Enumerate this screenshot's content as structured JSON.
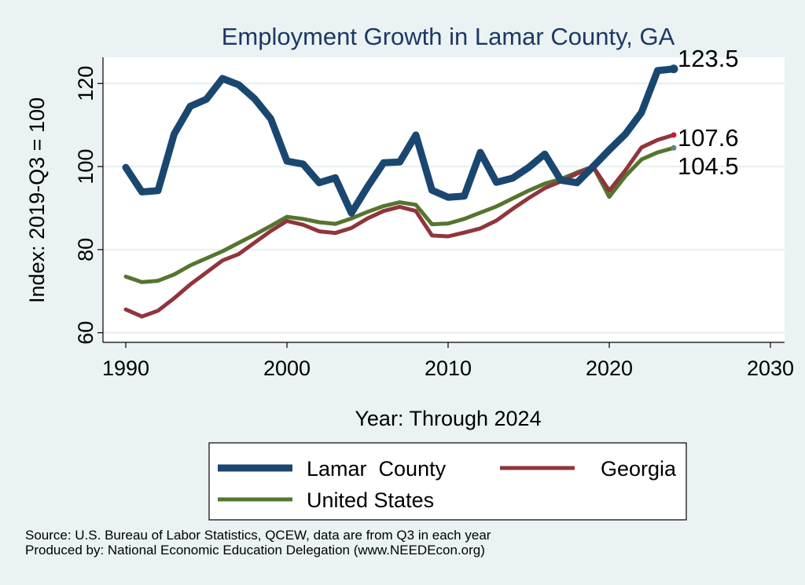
{
  "chart_data": {
    "type": "line",
    "title": "Employment Growth in Lamar County, GA",
    "xlabel": "Year: Through 2024",
    "ylabel": "Index: 2019-Q3 = 100",
    "xlim": [
      1990,
      2030
    ],
    "ylim": [
      60,
      125
    ],
    "x_ticks": [
      1990,
      2000,
      2010,
      2020,
      2030
    ],
    "y_ticks": [
      60,
      80,
      100,
      120
    ],
    "grid": true,
    "legend_position": "bottom",
    "x": [
      1990,
      1991,
      1992,
      1993,
      1994,
      1995,
      1996,
      1997,
      1998,
      1999,
      2000,
      2001,
      2002,
      2003,
      2004,
      2005,
      2006,
      2007,
      2008,
      2009,
      2010,
      2011,
      2012,
      2013,
      2014,
      2015,
      2016,
      2017,
      2018,
      2019,
      2020,
      2021,
      2022,
      2023,
      2024
    ],
    "series": [
      {
        "name": "Lamar  County",
        "color": "#1a476f",
        "end_label": "123.5",
        "values": [
          99.8,
          93.9,
          94.2,
          107.8,
          114.5,
          116.2,
          121.2,
          119.7,
          116.3,
          111.5,
          101.3,
          100.6,
          96.1,
          97.3,
          88.8,
          95.1,
          100.9,
          101.1,
          107.6,
          94.3,
          92.6,
          92.9,
          103.4,
          96.2,
          97.2,
          99.8,
          103.0,
          96.7,
          96.1,
          100.0,
          104.0,
          107.8,
          113.0,
          123.1,
          123.5
        ]
      },
      {
        "name": "Georgia",
        "color": "#90353b",
        "end_label": "107.6",
        "values": [
          65.6,
          63.9,
          65.3,
          68.3,
          71.6,
          74.5,
          77.4,
          78.9,
          81.7,
          84.5,
          86.9,
          86.0,
          84.4,
          84.0,
          85.2,
          87.5,
          89.3,
          90.3,
          89.3,
          83.4,
          83.2,
          84.1,
          85.1,
          87.0,
          89.8,
          92.4,
          94.8,
          96.4,
          98.3,
          100.0,
          94.2,
          99.1,
          104.6,
          106.4,
          107.6
        ]
      },
      {
        "name": "United States",
        "color": "#55752f",
        "end_label": "104.5",
        "values": [
          73.5,
          72.2,
          72.5,
          74.0,
          76.2,
          77.9,
          79.6,
          81.6,
          83.6,
          85.7,
          87.9,
          87.4,
          86.6,
          86.2,
          87.5,
          89.1,
          90.5,
          91.4,
          90.8,
          86.1,
          86.3,
          87.4,
          88.9,
          90.4,
          92.3,
          94.2,
          95.9,
          97.0,
          98.6,
          100.0,
          92.7,
          97.7,
          101.7,
          103.4,
          104.5
        ]
      }
    ]
  },
  "source_lines": [
    "Source: U.S. Bureau of Labor Statistics, QCEW, data are from Q3 in each year",
    "Produced by: National Economic Education Delegation (www.NEEDEcon.org)"
  ]
}
